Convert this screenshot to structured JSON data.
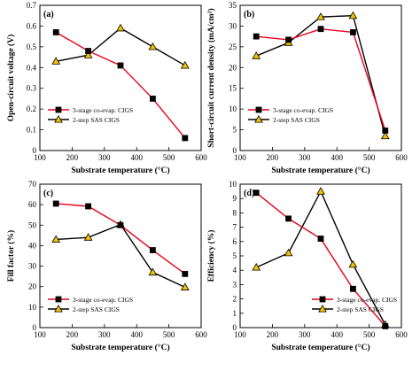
{
  "figure": {
    "colors": {
      "three_stage": "#e8001c",
      "three_stage_marker": "#000000",
      "two_step_line": "#000000",
      "two_step_marker": "#f2c200"
    }
  },
  "chart_data": [
    {
      "type": "line",
      "panel_label": "(a)",
      "x": [
        150,
        250,
        350,
        450,
        550
      ],
      "series": [
        {
          "name": "3-stage co-evap. CIGS",
          "values": [
            0.57,
            0.48,
            0.41,
            0.25,
            0.06
          ],
          "marker": "square"
        },
        {
          "name": "2-step SAS CIGS",
          "values": [
            0.43,
            0.46,
            0.59,
            0.5,
            0.41
          ],
          "marker": "triangle"
        }
      ],
      "title": "",
      "xlabel": "Substrate temperature (°C)",
      "ylabel": "Open-circuit voltage (V)",
      "xlim": [
        100,
        600
      ],
      "ylim": [
        0,
        0.7
      ],
      "xticks": [
        100,
        200,
        300,
        400,
        500,
        600
      ],
      "yticks": [
        0,
        0.1,
        0.2,
        0.3,
        0.4,
        0.5,
        0.6,
        0.7
      ],
      "ytick_labels": [
        "0",
        "0.1",
        "0.2",
        "0.3",
        "0.4",
        "0.5",
        "0.6",
        "0.7"
      ],
      "legend_position": "bottom-left",
      "grid": false
    },
    {
      "type": "line",
      "panel_label": "(b)",
      "x": [
        150,
        250,
        350,
        450,
        550
      ],
      "series": [
        {
          "name": "3-stage co-evap. CIGS",
          "values": [
            27.5,
            26.7,
            29.3,
            28.5,
            4.8
          ],
          "marker": "square"
        },
        {
          "name": "2-step SAS CIGS",
          "values": [
            22.8,
            26.0,
            32.2,
            32.5,
            3.5
          ],
          "marker": "triangle"
        }
      ],
      "title": "",
      "xlabel": "Substrate temperature (°C)",
      "ylabel": "Short-circuit current density (mA/cm²)",
      "xlim": [
        100,
        600
      ],
      "ylim": [
        0,
        35
      ],
      "xticks": [
        100,
        200,
        300,
        400,
        500,
        600
      ],
      "yticks": [
        0,
        5,
        10,
        15,
        20,
        25,
        30,
        35
      ],
      "ytick_labels": [
        "0",
        "5",
        "10",
        "15",
        "20",
        "25",
        "30",
        "35"
      ],
      "legend_position": "bottom-left",
      "grid": false
    },
    {
      "type": "line",
      "panel_label": "(c)",
      "x": [
        150,
        250,
        350,
        450,
        550
      ],
      "series": [
        {
          "name": "3-stage co-evap. CIGS",
          "values": [
            60.5,
            59.2,
            50.0,
            37.8,
            26.2
          ],
          "marker": "square"
        },
        {
          "name": "2-step SAS CIGS",
          "values": [
            43.0,
            44.0,
            50.3,
            27.0,
            19.7
          ],
          "marker": "triangle"
        }
      ],
      "title": "",
      "xlabel": "Substrate temperature (°C)",
      "ylabel": "Fill factor (%)",
      "xlim": [
        100,
        600
      ],
      "ylim": [
        0,
        70
      ],
      "xticks": [
        100,
        200,
        300,
        400,
        500,
        600
      ],
      "yticks": [
        0,
        10,
        20,
        30,
        40,
        50,
        60,
        70
      ],
      "ytick_labels": [
        "0",
        "10",
        "20",
        "30",
        "40",
        "50",
        "60",
        "70"
      ],
      "legend_position": "bottom-left",
      "grid": false
    },
    {
      "type": "line",
      "panel_label": "(d)",
      "x": [
        150,
        250,
        350,
        450,
        550
      ],
      "series": [
        {
          "name": "3-stage co-evap. CIGS",
          "values": [
            9.4,
            7.6,
            6.2,
            2.7,
            0.1
          ],
          "marker": "square"
        },
        {
          "name": "2-step SAS CIGS",
          "values": [
            4.2,
            5.2,
            9.5,
            4.4,
            0.2
          ],
          "marker": "triangle"
        }
      ],
      "title": "",
      "xlabel": "Substrate temperature (°C)",
      "ylabel": "Efficiency (%)",
      "xlim": [
        100,
        600
      ],
      "ylim": [
        0,
        10
      ],
      "xticks": [
        100,
        200,
        300,
        400,
        500,
        600
      ],
      "yticks": [
        0,
        1,
        2,
        3,
        4,
        5,
        6,
        7,
        8,
        9,
        10
      ],
      "ytick_labels": [
        "0",
        "1",
        "2",
        "3",
        "4",
        "5",
        "6",
        "7",
        "8",
        "9",
        "10"
      ],
      "legend_position": "bottom-right",
      "grid": false
    }
  ]
}
